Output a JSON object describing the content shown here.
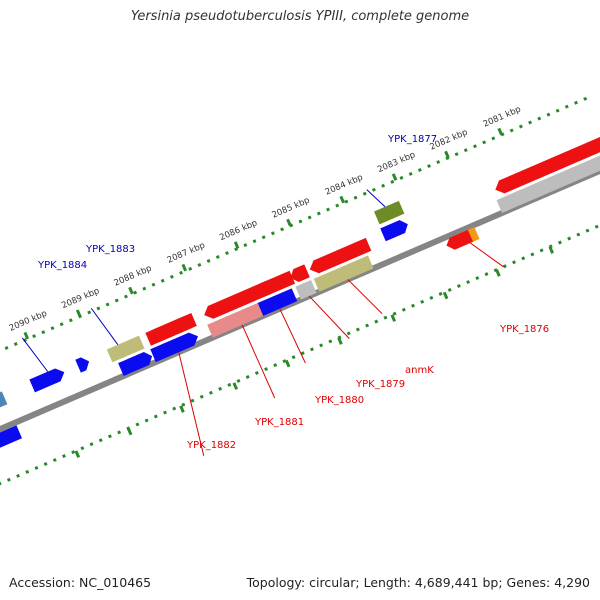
{
  "title": "Yersinia pseudotuberculosis YPIII, complete genome",
  "footer": {
    "accession": "Accession: NC_010465",
    "summary": "Topology: circular; Length: 4,689,441 bp; Genes: 4,290"
  },
  "colors": {
    "backbone": "#858585",
    "ruler": "#2a8a2a",
    "label_plus": "#0000bb",
    "label_minus": "#dd0000",
    "kbp_text": "#333333"
  },
  "kbp_labels": [
    "2090 kbp",
    "2089 kbp",
    "2088 kbp",
    "2087 kbp",
    "2086 kbp",
    "2085 kbp",
    "2084 kbp",
    "2083 kbp",
    "2082 kbp",
    "2081 kbp"
  ],
  "gene_labels": {
    "ypk_1884": "YPK_1884",
    "ypk_1883": "YPK_1883",
    "ypk_1877": "YPK_1877",
    "ypk_1882": "YPK_1882",
    "ypk_1881": "YPK_1881",
    "ypk_1880": "YPK_1880",
    "ypk_1879": "YPK_1879",
    "anmk": "anmK",
    "ypk_1876": "YPK_1876"
  },
  "feature_colors": {
    "blue": "#0b0bf0",
    "steelblue": "#4f86b8",
    "olive": "#bfbb78",
    "darkolive": "#6e8c25",
    "red": "#ee1111",
    "pink": "#e88a8a",
    "grey": "#bdbdbd",
    "orange": "#f39a12"
  }
}
